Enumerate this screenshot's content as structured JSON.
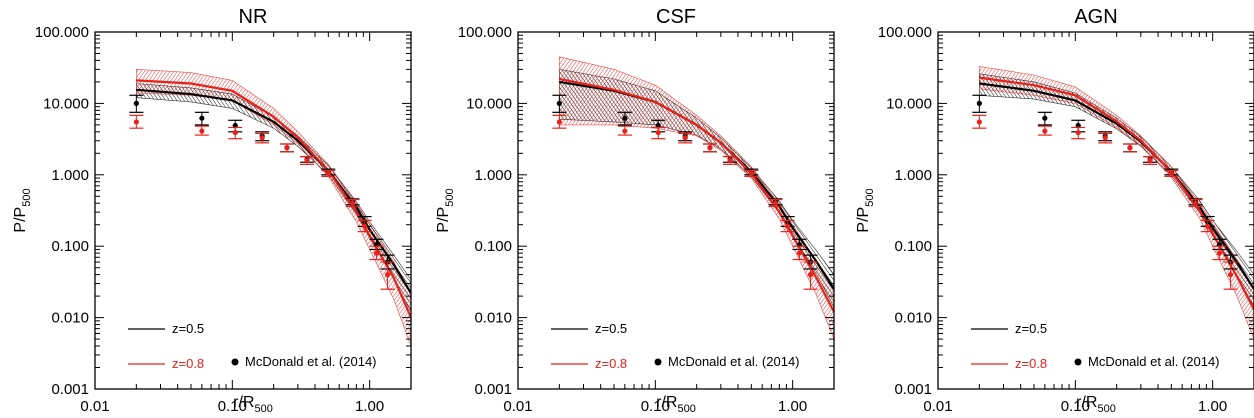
{
  "chart_data": [
    {
      "type": "line",
      "title": "NR",
      "xlabel": {
        "main": "r/R",
        "sub": "500"
      },
      "ylabel": {
        "main": "P/P",
        "sub": "500"
      },
      "xscale": "log",
      "yscale": "log",
      "xlim": [
        0.01,
        2.0
      ],
      "ylim": [
        0.001,
        100.0
      ],
      "xticks": [
        "0.01",
        "0.10",
        "1.00"
      ],
      "yticks": [
        "0.001",
        "0.010",
        "0.100",
        "1.000",
        "10.000",
        "100.000"
      ],
      "legend": {
        "placement": "bottom-left",
        "items": [
          "z=0.5",
          "z=0.8"
        ],
        "points_label": "McDonald et al. (2014)"
      },
      "series": [
        {
          "name": "z=0.5",
          "color": "#000000",
          "x": [
            0.02,
            0.05,
            0.1,
            0.2,
            0.3,
            0.5,
            0.8,
            1.0,
            1.5,
            2.0
          ],
          "y": [
            15.5,
            13.5,
            11.0,
            5.5,
            3.0,
            1.15,
            0.35,
            0.17,
            0.055,
            0.022
          ],
          "y_low": [
            12.0,
            10.5,
            8.5,
            4.5,
            2.5,
            1.0,
            0.28,
            0.13,
            0.035,
            0.012
          ],
          "y_high": [
            19.0,
            16.5,
            13.5,
            6.5,
            3.5,
            1.35,
            0.42,
            0.22,
            0.075,
            0.034
          ]
        },
        {
          "name": "z=0.8",
          "color": "#e8211b",
          "x": [
            0.02,
            0.05,
            0.1,
            0.2,
            0.3,
            0.5,
            0.8,
            1.0,
            1.5,
            2.0
          ],
          "y": [
            21.0,
            19.0,
            15.0,
            6.5,
            3.3,
            1.15,
            0.3,
            0.14,
            0.036,
            0.01
          ],
          "y_low": [
            14.0,
            13.0,
            11.0,
            5.0,
            2.7,
            0.95,
            0.22,
            0.09,
            0.018,
            0.004
          ],
          "y_high": [
            30.0,
            27.0,
            21.0,
            8.5,
            4.0,
            1.4,
            0.4,
            0.2,
            0.06,
            0.022
          ]
        }
      ],
      "observations": [
        {
          "name": "z=0.5",
          "color": "#000000",
          "x": [
            0.02,
            0.06,
            0.105,
            0.165,
            0.25,
            0.35,
            0.5,
            0.75,
            0.92,
            1.12,
            1.35
          ],
          "y": [
            10.0,
            6.2,
            4.9,
            3.5,
            2.4,
            1.65,
            1.1,
            0.42,
            0.22,
            0.105,
            0.06
          ],
          "err": [
            [
              7.5,
              13.0
            ],
            [
              5.0,
              7.5
            ],
            [
              4.0,
              5.8
            ],
            [
              3.0,
              4.0
            ],
            [
              2.1,
              2.7
            ],
            [
              1.5,
              1.8
            ],
            [
              1.0,
              1.2
            ],
            [
              0.38,
              0.46
            ],
            [
              0.19,
              0.26
            ],
            [
              0.09,
              0.125
            ],
            [
              0.048,
              0.075
            ]
          ]
        },
        {
          "name": "z=0.8",
          "color": "#e8211b",
          "x": [
            0.02,
            0.06,
            0.105,
            0.165,
            0.25,
            0.35,
            0.5,
            0.75,
            0.92,
            1.12,
            1.35
          ],
          "y": [
            5.5,
            4.1,
            3.9,
            3.3,
            2.4,
            1.6,
            1.05,
            0.4,
            0.19,
            0.08,
            0.04
          ],
          "err": [
            [
              4.5,
              6.8
            ],
            [
              3.6,
              4.8
            ],
            [
              3.2,
              4.6
            ],
            [
              2.8,
              3.8
            ],
            [
              2.1,
              2.7
            ],
            [
              1.4,
              1.8
            ],
            [
              0.95,
              1.15
            ],
            [
              0.36,
              0.45
            ],
            [
              0.16,
              0.23
            ],
            [
              0.065,
              0.1
            ],
            [
              0.025,
              0.06
            ]
          ]
        }
      ]
    },
    {
      "type": "line",
      "title": "CSF",
      "xlabel": {
        "main": "r/R",
        "sub": "500"
      },
      "ylabel": {
        "main": "P/P",
        "sub": "500"
      },
      "xscale": "log",
      "yscale": "log",
      "xlim": [
        0.01,
        2.0
      ],
      "ylim": [
        0.001,
        100.0
      ],
      "xticks": [
        "0.01",
        "0.10",
        "1.00"
      ],
      "yticks": [
        "0.001",
        "0.010",
        "0.100",
        "1.000",
        "10.000",
        "100.000"
      ],
      "legend": {
        "placement": "bottom-left",
        "items": [
          "z=0.5",
          "z=0.8"
        ],
        "points_label": "McDonald et al. (2014)"
      },
      "series": [
        {
          "name": "z=0.5",
          "color": "#000000",
          "x": [
            0.02,
            0.05,
            0.1,
            0.2,
            0.3,
            0.5,
            0.8,
            1.0,
            1.5,
            2.0
          ],
          "y": [
            20.0,
            15.0,
            10.5,
            5.0,
            2.8,
            1.1,
            0.36,
            0.18,
            0.06,
            0.025
          ],
          "y_low": [
            6.0,
            5.5,
            5.0,
            3.6,
            2.3,
            0.95,
            0.29,
            0.14,
            0.04,
            0.014
          ],
          "y_high": [
            30.0,
            22.0,
            15.0,
            6.2,
            3.3,
            1.25,
            0.43,
            0.23,
            0.085,
            0.04
          ]
        },
        {
          "name": "z=0.8",
          "color": "#e8211b",
          "x": [
            0.02,
            0.05,
            0.1,
            0.2,
            0.3,
            0.5,
            0.8,
            1.0,
            1.5,
            2.0
          ],
          "y": [
            22.0,
            15.5,
            10.5,
            5.0,
            2.8,
            1.05,
            0.3,
            0.14,
            0.035,
            0.012
          ],
          "y_low": [
            5.0,
            5.0,
            4.5,
            3.5,
            2.2,
            0.9,
            0.24,
            0.1,
            0.02,
            0.005
          ],
          "y_high": [
            45.0,
            30.0,
            18.0,
            6.8,
            3.5,
            1.3,
            0.38,
            0.2,
            0.06,
            0.025
          ]
        }
      ],
      "observations": [
        {
          "name": "z=0.5",
          "color": "#000000",
          "x": [
            0.02,
            0.06,
            0.105,
            0.165,
            0.25,
            0.35,
            0.5,
            0.75,
            0.92,
            1.12,
            1.35
          ],
          "y": [
            10.0,
            6.2,
            4.9,
            3.5,
            2.4,
            1.65,
            1.1,
            0.42,
            0.22,
            0.105,
            0.06
          ],
          "err": [
            [
              7.5,
              13.0
            ],
            [
              5.0,
              7.5
            ],
            [
              4.0,
              5.8
            ],
            [
              3.0,
              4.0
            ],
            [
              2.1,
              2.7
            ],
            [
              1.5,
              1.8
            ],
            [
              1.0,
              1.2
            ],
            [
              0.38,
              0.46
            ],
            [
              0.19,
              0.26
            ],
            [
              0.09,
              0.125
            ],
            [
              0.048,
              0.075
            ]
          ]
        },
        {
          "name": "z=0.8",
          "color": "#e8211b",
          "x": [
            0.02,
            0.06,
            0.105,
            0.165,
            0.25,
            0.35,
            0.5,
            0.75,
            0.92,
            1.12,
            1.35
          ],
          "y": [
            5.5,
            4.1,
            3.9,
            3.3,
            2.4,
            1.6,
            1.05,
            0.4,
            0.19,
            0.08,
            0.04
          ],
          "err": [
            [
              4.5,
              6.8
            ],
            [
              3.6,
              4.8
            ],
            [
              3.2,
              4.6
            ],
            [
              2.8,
              3.8
            ],
            [
              2.1,
              2.7
            ],
            [
              1.4,
              1.8
            ],
            [
              0.95,
              1.15
            ],
            [
              0.36,
              0.45
            ],
            [
              0.16,
              0.23
            ],
            [
              0.065,
              0.1
            ],
            [
              0.025,
              0.06
            ]
          ]
        }
      ]
    },
    {
      "type": "line",
      "title": "AGN",
      "xlabel": {
        "main": "r/R",
        "sub": "500"
      },
      "ylabel": {
        "main": "P/P",
        "sub": "500"
      },
      "xscale": "log",
      "yscale": "log",
      "xlim": [
        0.01,
        2.0
      ],
      "ylim": [
        0.001,
        100.0
      ],
      "xticks": [
        "0.01",
        "0.10",
        "1.00"
      ],
      "yticks": [
        "0.001",
        "0.010",
        "0.100",
        "1.000",
        "10.000",
        "100.000"
      ],
      "legend": {
        "placement": "bottom-left",
        "items": [
          "z=0.5",
          "z=0.8"
        ],
        "points_label": "McDonald et al. (2014)"
      },
      "series": [
        {
          "name": "z=0.5",
          "color": "#000000",
          "x": [
            0.02,
            0.05,
            0.1,
            0.2,
            0.3,
            0.5,
            0.8,
            1.0,
            1.5,
            2.0
          ],
          "y": [
            19.0,
            15.0,
            11.0,
            5.2,
            2.9,
            1.12,
            0.36,
            0.18,
            0.06,
            0.025
          ],
          "y_low": [
            13.0,
            11.5,
            9.0,
            4.4,
            2.5,
            0.98,
            0.3,
            0.14,
            0.04,
            0.014
          ],
          "y_high": [
            26.0,
            20.0,
            14.0,
            6.2,
            3.4,
            1.3,
            0.44,
            0.23,
            0.085,
            0.04
          ]
        },
        {
          "name": "z=0.8",
          "color": "#e8211b",
          "x": [
            0.02,
            0.05,
            0.1,
            0.2,
            0.3,
            0.5,
            0.8,
            1.0,
            1.5,
            2.0
          ],
          "y": [
            23.0,
            18.0,
            13.0,
            5.6,
            3.0,
            1.1,
            0.32,
            0.15,
            0.038,
            0.013
          ],
          "y_low": [
            16.0,
            13.0,
            10.0,
            4.6,
            2.6,
            0.92,
            0.25,
            0.1,
            0.02,
            0.005
          ],
          "y_high": [
            33.0,
            25.0,
            17.0,
            6.8,
            3.5,
            1.3,
            0.4,
            0.21,
            0.065,
            0.026
          ]
        }
      ],
      "observations": [
        {
          "name": "z=0.5",
          "color": "#000000",
          "x": [
            0.02,
            0.06,
            0.105,
            0.165,
            0.25,
            0.35,
            0.5,
            0.75,
            0.92,
            1.12,
            1.35
          ],
          "y": [
            10.0,
            6.2,
            4.9,
            3.5,
            2.4,
            1.65,
            1.1,
            0.42,
            0.22,
            0.105,
            0.06
          ],
          "err": [
            [
              7.5,
              13.0
            ],
            [
              5.0,
              7.5
            ],
            [
              4.0,
              5.8
            ],
            [
              3.0,
              4.0
            ],
            [
              2.1,
              2.7
            ],
            [
              1.5,
              1.8
            ],
            [
              1.0,
              1.2
            ],
            [
              0.38,
              0.46
            ],
            [
              0.19,
              0.26
            ],
            [
              0.09,
              0.125
            ],
            [
              0.048,
              0.075
            ]
          ]
        },
        {
          "name": "z=0.8",
          "color": "#e8211b",
          "x": [
            0.02,
            0.06,
            0.105,
            0.165,
            0.25,
            0.35,
            0.5,
            0.75,
            0.92,
            1.12,
            1.35
          ],
          "y": [
            5.5,
            4.1,
            3.9,
            3.3,
            2.4,
            1.6,
            1.05,
            0.4,
            0.19,
            0.08,
            0.04
          ],
          "err": [
            [
              4.5,
              6.8
            ],
            [
              3.6,
              4.8
            ],
            [
              3.2,
              4.6
            ],
            [
              2.8,
              3.8
            ],
            [
              2.1,
              2.7
            ],
            [
              1.4,
              1.8
            ],
            [
              0.95,
              1.15
            ],
            [
              0.36,
              0.45
            ],
            [
              0.16,
              0.23
            ],
            [
              0.065,
              0.1
            ],
            [
              0.025,
              0.06
            ]
          ]
        }
      ]
    }
  ]
}
